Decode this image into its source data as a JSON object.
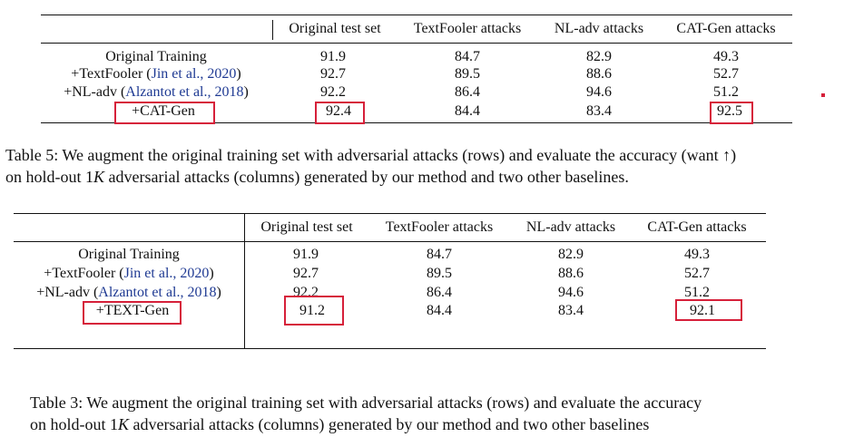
{
  "table5": {
    "headers": [
      "Original test set",
      "TextFooler attacks",
      "NL-adv attacks",
      "CAT-Gen attacks"
    ],
    "rows": [
      {
        "label": "Original Training",
        "cite": "",
        "values": [
          "91.9",
          "84.7",
          "82.9",
          "49.3"
        ]
      },
      {
        "label": "+TextFooler (",
        "cite": "Jin et al., 2020",
        "close": ")",
        "values": [
          "92.7",
          "89.5",
          "88.6",
          "52.7"
        ]
      },
      {
        "label": "+NL-adv (",
        "cite": "Alzantot et al., 2018",
        "close": ")",
        "values": [
          "92.2",
          "86.4",
          "94.6",
          "51.2"
        ]
      },
      {
        "label": "+CAT-Gen",
        "cite": "",
        "values": [
          "92.4",
          "84.4",
          "83.4",
          "92.5"
        ]
      }
    ],
    "caption_line1": "Table 5: We augment the original training set with adversarial attacks (rows) and evaluate the accuracy (want ↑)",
    "caption_line2_pre": "on hold-out 1",
    "caption_k": "K",
    "caption_line2_post": " adversarial attacks (columns) generated by our method and two other baselines."
  },
  "table3": {
    "headers": [
      "Original test set",
      "TextFooler attacks",
      "NL-adv attacks",
      "CAT-Gen attacks"
    ],
    "rows": [
      {
        "label": "Original Training",
        "cite": "",
        "values": [
          "91.9",
          "84.7",
          "82.9",
          "49.3"
        ]
      },
      {
        "label": "+TextFooler (",
        "cite": "Jin et al., 2020",
        "close": ")",
        "values": [
          "92.7",
          "89.5",
          "88.6",
          "52.7"
        ]
      },
      {
        "label": "+NL-adv (",
        "cite": "Alzantot et al., 2018",
        "close": ")",
        "values": [
          "92.2",
          "86.4",
          "94.6",
          "51.2"
        ]
      },
      {
        "label": "+TEXT-Gen",
        "cite": "",
        "values": [
          "91.2",
          "84.4",
          "83.4",
          "92.1"
        ]
      }
    ],
    "caption_line1": "Table 3: We augment the original training set with adversarial attacks (rows) and evaluate the accuracy",
    "caption_line2_pre": "on hold-out 1",
    "caption_k": "K",
    "caption_line2_post": " adversarial attacks (columns) generated by our method and two other baselines"
  },
  "colors": {
    "highlight_box": "#d6203a",
    "citation": "#1f3a93"
  }
}
